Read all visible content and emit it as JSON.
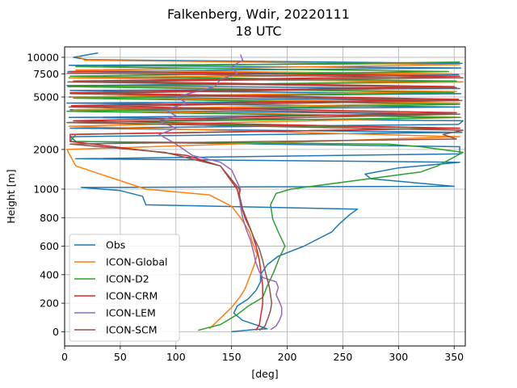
{
  "chart_data": {
    "type": "line",
    "title": "Falkenberg, Wdir, 20220111",
    "subtitle": "18 UTC",
    "xlabel": "[deg]",
    "ylabel": "Height [m]",
    "xlim": [
      0,
      360
    ],
    "xticks": [
      0,
      50,
      100,
      150,
      200,
      250,
      300,
      350
    ],
    "lower_yticks": [
      0,
      200,
      400,
      600,
      800,
      1000
    ],
    "upper_yticks": [
      2000,
      5000,
      7500,
      10000
    ],
    "ylim_lower": [
      -100,
      1000
    ],
    "ylim_upper_log": [
      1000,
      12000
    ],
    "grid": true,
    "legend_position": "lower-left",
    "series": [
      {
        "name": "Obs",
        "color": "#1f77b4",
        "points": [
          [
            150,
            0
          ],
          [
            170,
            15
          ],
          [
            182,
            20
          ],
          [
            175,
            40
          ],
          [
            160,
            80
          ],
          [
            152,
            130
          ],
          [
            155,
            180
          ],
          [
            165,
            230
          ],
          [
            172,
            290
          ],
          [
            176,
            350
          ],
          [
            176,
            400
          ],
          [
            182,
            470
          ],
          [
            192,
            530
          ],
          [
            215,
            600
          ],
          [
            240,
            700
          ],
          [
            246,
            750
          ],
          [
            256,
            820
          ],
          [
            263,
            860
          ],
          [
            73,
            890
          ],
          [
            70,
            950
          ],
          [
            50,
            990
          ],
          [
            15,
            1030
          ],
          [
            350,
            1050
          ],
          [
            275,
            1200
          ],
          [
            270,
            1300
          ],
          [
            300,
            1450
          ],
          [
            355,
            1600
          ],
          [
            10,
            1700
          ],
          [
            355,
            1850
          ],
          [
            355,
            2100
          ],
          [
            10,
            2300
          ],
          [
            5,
            2500
          ],
          [
            357,
            2700
          ],
          [
            5,
            2900
          ],
          [
            354,
            3100
          ],
          [
            358,
            3300
          ],
          [
            4,
            3500
          ],
          [
            350,
            3700
          ],
          [
            5,
            4000
          ],
          [
            355,
            4200
          ],
          [
            2,
            4500
          ],
          [
            354,
            4700
          ],
          [
            4,
            5000
          ],
          [
            356,
            5300
          ],
          [
            5,
            5600
          ],
          [
            355,
            5800
          ],
          [
            2,
            6100
          ],
          [
            356,
            6500
          ],
          [
            4,
            7000
          ],
          [
            354,
            7400
          ],
          [
            3,
            7800
          ],
          [
            356,
            8300
          ],
          [
            4,
            8700
          ],
          [
            357,
            9000
          ],
          [
            20,
            9600
          ],
          [
            8,
            10000
          ],
          [
            30,
            10800
          ]
        ]
      },
      {
        "name": "ICON-Global",
        "color": "#ff7f0e",
        "points": [
          [
            130,
            20
          ],
          [
            138,
            80
          ],
          [
            150,
            170
          ],
          [
            158,
            250
          ],
          [
            162,
            300
          ],
          [
            166,
            380
          ],
          [
            170,
            460
          ],
          [
            173,
            540
          ],
          [
            169,
            620
          ],
          [
            166,
            700
          ],
          [
            158,
            800
          ],
          [
            150,
            880
          ],
          [
            130,
            960
          ],
          [
            73,
            1000
          ],
          [
            10,
            1500
          ],
          [
            2,
            2000
          ],
          [
            355,
            2500
          ],
          [
            4,
            3000
          ],
          [
            356,
            3500
          ],
          [
            8,
            4000
          ],
          [
            355,
            4500
          ],
          [
            6,
            5000
          ],
          [
            352,
            5500
          ],
          [
            5,
            6000
          ],
          [
            358,
            6500
          ],
          [
            5,
            7000
          ],
          [
            348,
            7500
          ],
          [
            10,
            8000
          ],
          [
            355,
            8800
          ],
          [
            18,
            9500
          ],
          [
            12,
            10200
          ]
        ]
      },
      {
        "name": "ICON-D2",
        "color": "#2ca02c",
        "points": [
          [
            120,
            10
          ],
          [
            140,
            50
          ],
          [
            155,
            120
          ],
          [
            165,
            180
          ],
          [
            178,
            240
          ],
          [
            182,
            320
          ],
          [
            188,
            420
          ],
          [
            193,
            520
          ],
          [
            198,
            600
          ],
          [
            192,
            700
          ],
          [
            187,
            790
          ],
          [
            185,
            890
          ],
          [
            190,
            970
          ],
          [
            203,
            1000
          ],
          [
            320,
            1350
          ],
          [
            335,
            1500
          ],
          [
            358,
            1900
          ],
          [
            320,
            2100
          ],
          [
            290,
            2200
          ],
          [
            5,
            2300
          ],
          [
            10,
            2600
          ],
          [
            355,
            2900
          ],
          [
            2,
            3200
          ],
          [
            355,
            3500
          ],
          [
            2,
            3900
          ],
          [
            355,
            4400
          ],
          [
            8,
            4900
          ],
          [
            350,
            5400
          ],
          [
            3,
            6000
          ],
          [
            352,
            6600
          ],
          [
            5,
            7200
          ],
          [
            345,
            7800
          ],
          [
            10,
            8500
          ],
          [
            355,
            9200
          ]
        ]
      },
      {
        "name": "ICON-CRM",
        "color": "#d62728",
        "points": [
          [
            172,
            10
          ],
          [
            175,
            50
          ],
          [
            176,
            100
          ],
          [
            177,
            150
          ],
          [
            178,
            200
          ],
          [
            178,
            260
          ],
          [
            178,
            320
          ],
          [
            177,
            380
          ],
          [
            176,
            440
          ],
          [
            175,
            500
          ],
          [
            172,
            600
          ],
          [
            168,
            700
          ],
          [
            162,
            800
          ],
          [
            158,
            900
          ],
          [
            155,
            1000
          ],
          [
            140,
            1500
          ],
          [
            110,
            1800
          ],
          [
            5,
            2300
          ],
          [
            5,
            2600
          ],
          [
            355,
            2900
          ],
          [
            8,
            3300
          ],
          [
            352,
            3800
          ],
          [
            6,
            4300
          ],
          [
            354,
            4800
          ],
          [
            5,
            5400
          ],
          [
            350,
            6000
          ],
          [
            8,
            6600
          ],
          [
            355,
            7200
          ],
          [
            5,
            7800
          ]
        ]
      },
      {
        "name": "ICON-LEM",
        "color": "#9467bd",
        "points": [
          [
            185,
            15
          ],
          [
            190,
            40
          ],
          [
            193,
            80
          ],
          [
            195,
            120
          ],
          [
            195,
            170
          ],
          [
            193,
            210
          ],
          [
            190,
            260
          ],
          [
            192,
            310
          ],
          [
            190,
            350
          ],
          [
            178,
            380
          ],
          [
            175,
            420
          ],
          [
            172,
            480
          ],
          [
            170,
            550
          ],
          [
            167,
            640
          ],
          [
            163,
            720
          ],
          [
            160,
            800
          ],
          [
            158,
            880
          ],
          [
            157,
            960
          ],
          [
            158,
            1000
          ],
          [
            150,
            1400
          ],
          [
            140,
            1600
          ],
          [
            115,
            1800
          ],
          [
            100,
            2200
          ],
          [
            85,
            2600
          ],
          [
            100,
            2900
          ],
          [
            85,
            3300
          ],
          [
            100,
            3600
          ],
          [
            90,
            4000
          ],
          [
            110,
            4500
          ],
          [
            100,
            5000
          ],
          [
            135,
            6000
          ],
          [
            140,
            6800
          ],
          [
            155,
            7500
          ],
          [
            150,
            8500
          ],
          [
            160,
            9500
          ],
          [
            158,
            10500
          ]
        ]
      },
      {
        "name": "ICON-SCM",
        "color": "#8c564b",
        "points": [
          [
            175,
            10
          ],
          [
            180,
            40
          ],
          [
            183,
            100
          ],
          [
            185,
            150
          ],
          [
            186,
            200
          ],
          [
            185,
            260
          ],
          [
            184,
            310
          ],
          [
            182,
            370
          ],
          [
            180,
            430
          ],
          [
            178,
            500
          ],
          [
            175,
            580
          ],
          [
            170,
            660
          ],
          [
            165,
            760
          ],
          [
            160,
            860
          ],
          [
            157,
            960
          ],
          [
            157,
            1000
          ],
          [
            140,
            1500
          ],
          [
            90,
            1900
          ],
          [
            5,
            2200
          ],
          [
            352,
            2400
          ],
          [
            340,
            2600
          ],
          [
            358,
            2800
          ],
          [
            3,
            3200
          ],
          [
            355,
            3700
          ],
          [
            4,
            4200
          ],
          [
            357,
            4700
          ],
          [
            5,
            5300
          ],
          [
            352,
            5900
          ],
          [
            3,
            6500
          ],
          [
            358,
            7000
          ],
          [
            2,
            7600
          ]
        ]
      }
    ]
  }
}
